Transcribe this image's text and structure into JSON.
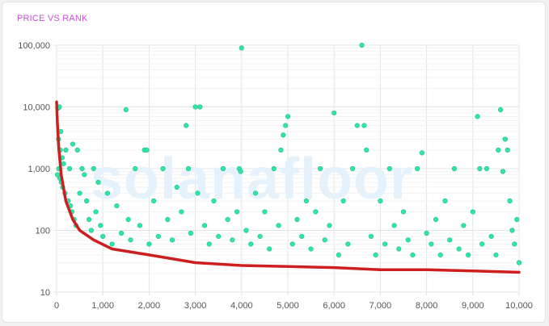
{
  "title": "PRICE VS RANK",
  "watermark": "solanafloor",
  "colors": {
    "title": "#c94fd6",
    "points": "#2ee6a6",
    "point_stroke": "#1fbf8a",
    "curve": "#cc1f1f",
    "grid": "#e4e4e4"
  },
  "chart_data": {
    "type": "scatter",
    "title": "PRICE VS RANK",
    "xlabel": "",
    "ylabel": "",
    "xlim": [
      0,
      10000
    ],
    "ylim": [
      10,
      100000
    ],
    "yscale": "log",
    "grid": true,
    "x_ticks": [
      0,
      1000,
      2000,
      3000,
      4000,
      5000,
      6000,
      7000,
      8000,
      9000,
      10000
    ],
    "x_tick_labels": [
      "0",
      "1,000",
      "2,000",
      "3,000",
      "4,000",
      "5,000",
      "6,000",
      "7,000",
      "8,000",
      "9,000",
      "10,000"
    ],
    "y_ticks": [
      10,
      100,
      1000,
      10000,
      100000
    ],
    "y_tick_labels": [
      "10",
      "100",
      "1,000",
      "10,000",
      "100,000"
    ],
    "series": [
      {
        "values": [
          [
            30,
            9500
          ],
          [
            60,
            10000
          ],
          [
            90,
            4000
          ],
          [
            40,
            3000
          ],
          [
            80,
            2000
          ],
          [
            120,
            1500
          ],
          [
            150,
            1200
          ],
          [
            20,
            800
          ],
          [
            50,
            1000
          ],
          [
            70,
            700
          ],
          [
            100,
            600
          ],
          [
            130,
            500
          ],
          [
            180,
            400
          ],
          [
            200,
            2000
          ],
          [
            250,
            300
          ],
          [
            280,
            1000
          ],
          [
            300,
            250
          ],
          [
            330,
            200
          ],
          [
            350,
            2500
          ],
          [
            380,
            150
          ],
          [
            420,
            120
          ],
          [
            450,
            2000
          ],
          [
            500,
            400
          ],
          [
            550,
            1000
          ],
          [
            600,
            800
          ],
          [
            650,
            300
          ],
          [
            700,
            150
          ],
          [
            750,
            100
          ],
          [
            800,
            1000
          ],
          [
            850,
            200
          ],
          [
            900,
            600
          ],
          [
            950,
            120
          ],
          [
            1000,
            80
          ],
          [
            1100,
            400
          ],
          [
            1200,
            60
          ],
          [
            1300,
            250
          ],
          [
            1400,
            90
          ],
          [
            1500,
            9000
          ],
          [
            1550,
            150
          ],
          [
            1600,
            70
          ],
          [
            1700,
            1000
          ],
          [
            1800,
            120
          ],
          [
            1900,
            2000
          ],
          [
            1950,
            2000
          ],
          [
            2000,
            60
          ],
          [
            2100,
            300
          ],
          [
            2200,
            80
          ],
          [
            2300,
            1000
          ],
          [
            2400,
            150
          ],
          [
            2500,
            70
          ],
          [
            2600,
            500
          ],
          [
            2700,
            200
          ],
          [
            2800,
            5000
          ],
          [
            2850,
            1000
          ],
          [
            2900,
            90
          ],
          [
            3000,
            10000
          ],
          [
            3050,
            400
          ],
          [
            3100,
            10000
          ],
          [
            3200,
            120
          ],
          [
            3300,
            60
          ],
          [
            3400,
            300
          ],
          [
            3500,
            80
          ],
          [
            3600,
            1000
          ],
          [
            3700,
            150
          ],
          [
            3800,
            70
          ],
          [
            3900,
            200
          ],
          [
            3950,
            1000
          ],
          [
            3980,
            900
          ],
          [
            4000,
            90000
          ],
          [
            4100,
            100
          ],
          [
            4200,
            60
          ],
          [
            4300,
            400
          ],
          [
            4400,
            80
          ],
          [
            4500,
            200
          ],
          [
            4600,
            50
          ],
          [
            4700,
            1000
          ],
          [
            4800,
            120
          ],
          [
            4850,
            2000
          ],
          [
            4900,
            3500
          ],
          [
            4950,
            5000
          ],
          [
            5000,
            7000
          ],
          [
            5100,
            60
          ],
          [
            5200,
            150
          ],
          [
            5300,
            80
          ],
          [
            5400,
            300
          ],
          [
            5500,
            50
          ],
          [
            5600,
            200
          ],
          [
            5700,
            1000
          ],
          [
            5800,
            70
          ],
          [
            5900,
            120
          ],
          [
            6000,
            8000
          ],
          [
            6100,
            40
          ],
          [
            6200,
            300
          ],
          [
            6300,
            60
          ],
          [
            6400,
            1000
          ],
          [
            6500,
            5000
          ],
          [
            6600,
            100000
          ],
          [
            6650,
            5000
          ],
          [
            6700,
            2000
          ],
          [
            6800,
            80
          ],
          [
            6900,
            40
          ],
          [
            7000,
            300
          ],
          [
            7100,
            60
          ],
          [
            7200,
            1000
          ],
          [
            7300,
            120
          ],
          [
            7400,
            50
          ],
          [
            7500,
            200
          ],
          [
            7600,
            70
          ],
          [
            7700,
            40
          ],
          [
            7800,
            1000
          ],
          [
            7900,
            1800
          ],
          [
            8000,
            90
          ],
          [
            8100,
            60
          ],
          [
            8200,
            150
          ],
          [
            8300,
            40
          ],
          [
            8400,
            300
          ],
          [
            8500,
            70
          ],
          [
            8600,
            1000
          ],
          [
            8700,
            50
          ],
          [
            8800,
            120
          ],
          [
            8900,
            40
          ],
          [
            9000,
            200
          ],
          [
            9100,
            7000
          ],
          [
            9150,
            1000
          ],
          [
            9200,
            60
          ],
          [
            9300,
            1000
          ],
          [
            9400,
            80
          ],
          [
            9500,
            40
          ],
          [
            9550,
            2000
          ],
          [
            9600,
            9000
          ],
          [
            9650,
            900
          ],
          [
            9700,
            3000
          ],
          [
            9750,
            2000
          ],
          [
            9800,
            300
          ],
          [
            9850,
            100
          ],
          [
            9900,
            60
          ],
          [
            9950,
            150
          ],
          [
            10000,
            30
          ]
        ]
      }
    ],
    "trend_line": [
      [
        0,
        12000
      ],
      [
        20,
        5000
      ],
      [
        50,
        2000
      ],
      [
        100,
        800
      ],
      [
        200,
        300
      ],
      [
        350,
        150
      ],
      [
        500,
        100
      ],
      [
        800,
        70
      ],
      [
        1200,
        50
      ],
      [
        2000,
        40
      ],
      [
        3000,
        30
      ],
      [
        4000,
        27
      ],
      [
        5000,
        26
      ],
      [
        6000,
        25
      ],
      [
        7000,
        23
      ],
      [
        8000,
        23
      ],
      [
        9000,
        22
      ],
      [
        10000,
        21
      ]
    ]
  }
}
